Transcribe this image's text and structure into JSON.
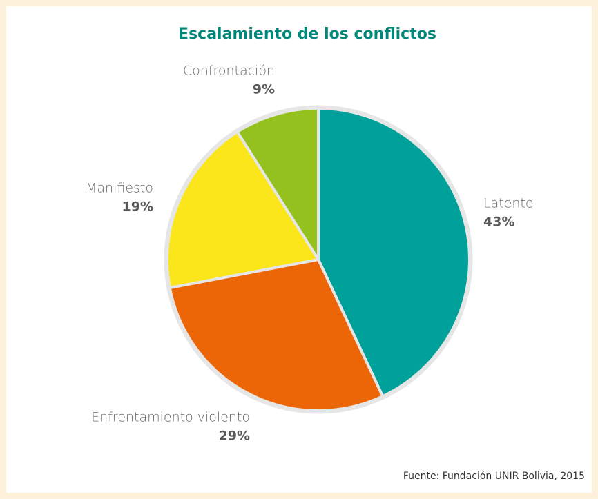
{
  "chart_data": {
    "type": "pie",
    "title": "Escalamiento de los conflictos",
    "categories": [
      "Latente",
      "Enfrentamiento violento",
      "Manifiesto",
      "Confrontación"
    ],
    "values": [
      43,
      29,
      19,
      9
    ],
    "value_labels": [
      "43%",
      "29%",
      "19%",
      "9%"
    ],
    "colors": [
      "#00a19a",
      "#ec6608",
      "#fbe51b",
      "#95c11f"
    ],
    "source": "Fuente: Fundación UNIR Bolivia, 2015"
  }
}
